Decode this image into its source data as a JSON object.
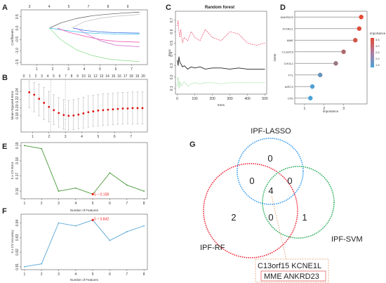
{
  "panels": {
    "A": "A",
    "B": "B",
    "C": "C",
    "D": "D",
    "E": "E",
    "F": "F",
    "G": "G"
  },
  "chart_data": [
    {
      "panel": "A",
      "type": "line",
      "xlabel": "",
      "ylabel": "Coefficients",
      "x_ticks": [
        "1",
        "2",
        "3",
        "4",
        "5",
        "6",
        "7"
      ],
      "top_ticks": [
        "3",
        "4",
        "5",
        "7",
        "8",
        "9"
      ],
      "y_ticks": [
        "-1.5",
        "-1.0",
        "-0.5",
        "0.0",
        "0.5"
      ],
      "xlim": [
        0,
        8
      ],
      "ylim": [
        -1.6,
        0.8
      ],
      "series": [
        {
          "color": "#555555",
          "x": [
            1.8,
            2.5,
            3.5,
            4.5,
            5.5,
            6.5,
            7.5
          ],
          "values": [
            0.0,
            0.22,
            0.42,
            0.54,
            0.61,
            0.66,
            0.7
          ]
        },
        {
          "color": "#bbbbbb",
          "x": [
            3.2,
            4,
            5,
            6,
            7,
            7.5
          ],
          "values": [
            0.0,
            0.28,
            0.43,
            0.52,
            0.57,
            0.6
          ]
        },
        {
          "color": "#33bbee",
          "x": [
            1.8,
            3,
            4,
            5,
            6,
            7.5
          ],
          "values": [
            0.0,
            -0.12,
            -0.2,
            -0.24,
            -0.26,
            -0.27
          ]
        },
        {
          "color": "#2266dd",
          "x": [
            3.3,
            4,
            5,
            6,
            7.5
          ],
          "values": [
            0.0,
            -0.1,
            -0.17,
            -0.2,
            -0.22
          ]
        },
        {
          "color": "#ee44aa",
          "x": [
            2.3,
            3,
            4,
            5,
            6,
            7.5
          ],
          "values": [
            0.0,
            -0.18,
            -0.35,
            -0.5,
            -0.58,
            -0.62
          ]
        },
        {
          "color": "#cc66cc",
          "x": [
            3.5,
            4,
            5,
            6,
            7.5
          ],
          "values": [
            0.0,
            -0.2,
            -0.55,
            -0.75,
            -0.82
          ]
        },
        {
          "color": "#88dd88",
          "x": [
            1.8,
            2.5,
            3.5,
            4.5,
            5.5,
            6.5,
            7.5
          ],
          "values": [
            0.0,
            -0.5,
            -0.95,
            -1.2,
            -1.35,
            -1.42,
            -1.47
          ]
        }
      ]
    },
    {
      "panel": "B",
      "type": "scatter",
      "xlabel": "",
      "ylabel": "Mean-Squared Error",
      "x_ticks": [
        "1",
        "2",
        "3",
        "4",
        "5",
        "6",
        "7"
      ],
      "top_ticks": [
        "0",
        "1",
        "2",
        "3",
        "4",
        "5",
        "6",
        "7",
        "8",
        "9",
        "10",
        "11",
        "12",
        "13",
        "14",
        "15",
        "16",
        "17",
        "18",
        "19",
        "20"
      ],
      "y_ticks": [
        "0.18",
        "0.20",
        "0.22",
        "0.24"
      ],
      "xlim": [
        0.3,
        8
      ],
      "ylim": [
        0.14,
        0.27
      ],
      "x": [
        0.8,
        1.1,
        1.4,
        1.7,
        2.0,
        2.3,
        2.6,
        2.9,
        3.2,
        3.5,
        3.8,
        4.1,
        4.4,
        4.7,
        5.0,
        5.3,
        5.6,
        5.9,
        6.2,
        6.5,
        6.8,
        7.1,
        7.4,
        7.7
      ],
      "values": [
        0.238,
        0.232,
        0.222,
        0.212,
        0.202,
        0.194,
        0.187,
        0.182,
        0.18,
        0.181,
        0.183,
        0.186,
        0.189,
        0.191,
        0.193,
        0.194,
        0.195,
        0.196,
        0.197,
        0.198,
        0.198,
        0.199,
        0.199,
        0.199
      ],
      "error_lower": [
        0.2,
        0.19,
        0.18,
        0.17,
        0.165,
        0.158,
        0.152,
        0.147,
        0.145,
        0.146,
        0.148,
        0.15,
        0.152,
        0.154,
        0.155,
        0.156,
        0.157,
        0.158,
        0.159,
        0.159,
        0.16,
        0.16,
        0.16,
        0.16
      ],
      "error_upper": [
        0.265,
        0.262,
        0.258,
        0.25,
        0.24,
        0.232,
        0.225,
        0.22,
        0.218,
        0.22,
        0.223,
        0.226,
        0.229,
        0.231,
        0.233,
        0.234,
        0.235,
        0.236,
        0.237,
        0.238,
        0.238,
        0.239,
        0.239,
        0.239
      ],
      "vlines": [
        2.1,
        3.0
      ]
    },
    {
      "panel": "C",
      "type": "line",
      "title": "Random forest",
      "xlabel": "trees",
      "ylabel": "Error",
      "x_ticks": [
        "0",
        "100",
        "200",
        "300",
        "400",
        "500"
      ],
      "y_ticks": [
        "0.1",
        "0.2",
        "0.3",
        "0.4",
        "0.5",
        "0.6",
        "0.7"
      ],
      "xlim": [
        -10,
        510
      ],
      "ylim": [
        0.05,
        0.78
      ],
      "series": [
        {
          "color": "#222222",
          "x": [
            1,
            5,
            10,
            15,
            20,
            30,
            40,
            60,
            80,
            100,
            130,
            160,
            200,
            250,
            300,
            350,
            400,
            450,
            500
          ],
          "values": [
            0.35,
            0.3,
            0.38,
            0.33,
            0.32,
            0.29,
            0.3,
            0.27,
            0.29,
            0.28,
            0.29,
            0.27,
            0.28,
            0.28,
            0.27,
            0.28,
            0.27,
            0.27,
            0.27
          ]
        },
        {
          "color": "#ee4466",
          "x": [
            1,
            5,
            10,
            15,
            20,
            30,
            40,
            60,
            80,
            100,
            130,
            160,
            200,
            250,
            300,
            350,
            400,
            450,
            500
          ],
          "values": [
            0.65,
            0.7,
            0.6,
            0.55,
            0.62,
            0.5,
            0.55,
            0.52,
            0.6,
            0.55,
            0.52,
            0.62,
            0.55,
            0.52,
            0.6,
            0.58,
            0.5,
            0.48,
            0.5
          ]
        },
        {
          "color": "#66cc66",
          "x": [
            1,
            5,
            10,
            15,
            20,
            30,
            40,
            60,
            80,
            100,
            130,
            160,
            200,
            250,
            300,
            350,
            400,
            450,
            500
          ],
          "values": [
            0.12,
            0.2,
            0.1,
            0.16,
            0.12,
            0.14,
            0.16,
            0.12,
            0.14,
            0.15,
            0.14,
            0.15,
            0.15,
            0.14,
            0.15,
            0.15,
            0.15,
            0.15,
            0.15
          ]
        }
      ]
    },
    {
      "panel": "D",
      "type": "scatter",
      "xlabel": "importance",
      "ylabel": "Gene",
      "categories": [
        "ANKRD23",
        "KCNE1L",
        "MME",
        "C13orf15",
        "CHI3L1",
        "FTL",
        "AIRCX",
        "CFD"
      ],
      "values": [
        3.9,
        3.8,
        3.6,
        3.0,
        2.6,
        1.8,
        1.4,
        1.3
      ],
      "xlim": [
        0.5,
        4.2
      ],
      "x_ticks": [
        "1",
        "2",
        "3"
      ],
      "legend": {
        "title": "importance",
        "ticks": [
          "3.5",
          "3.0",
          "2.5",
          "2.0",
          "1.5"
        ]
      },
      "legend_position": "right"
    },
    {
      "panel": "E",
      "type": "line",
      "xlabel": "Number of Features",
      "ylabel": "5 x CV Error",
      "x": [
        1,
        2,
        3,
        4,
        5,
        6,
        7,
        8
      ],
      "values": [
        0.19,
        0.188,
        0.16,
        0.162,
        0.158,
        0.172,
        0.164,
        0.16
      ],
      "xlim": [
        0.8,
        8.2
      ],
      "ylim": [
        0.155,
        0.192
      ],
      "x_ticks": [
        "1",
        "2",
        "3",
        "4",
        "5",
        "6",
        "7",
        "8"
      ],
      "y_ticks": [
        "0.16",
        "0.17",
        "0.18",
        "0.19"
      ],
      "annotation": "5 ~ 0.158",
      "annotation_x": 5,
      "annotation_y": 0.158
    },
    {
      "panel": "F",
      "type": "line",
      "xlabel": "Number of Features",
      "ylabel": "5 x CV Accuracy",
      "x": [
        1,
        2,
        3,
        4,
        5,
        6,
        7,
        8
      ],
      "values": [
        0.81,
        0.812,
        0.84,
        0.838,
        0.842,
        0.828,
        0.834,
        0.838
      ],
      "xlim": [
        0.8,
        8.2
      ],
      "ylim": [
        0.808,
        0.846
      ],
      "x_ticks": [
        "1",
        "2",
        "3",
        "4",
        "5",
        "6",
        "7",
        "8"
      ],
      "y_ticks": [
        "0.81",
        "0.82",
        "0.83",
        "0.84"
      ],
      "annotation": "5 ~ 0.842",
      "annotation_x": 5,
      "annotation_y": 0.842
    }
  ],
  "venn": {
    "sets": [
      {
        "name": "IPF-LASSO",
        "color": "#3399ee"
      },
      {
        "name": "IPF-RF",
        "color": "#ee2233"
      },
      {
        "name": "IPF-SVM",
        "color": "#22aa55"
      }
    ],
    "regions": {
      "lasso_only": "0",
      "lasso_rf": "0",
      "lasso_svm": "0",
      "center": "4",
      "rf_only": "2",
      "rf_svm": "0",
      "svm_only": "1"
    },
    "genes_line1": "C13orf15  KCNE1L",
    "genes_line2": "MME   ANKRD23"
  }
}
